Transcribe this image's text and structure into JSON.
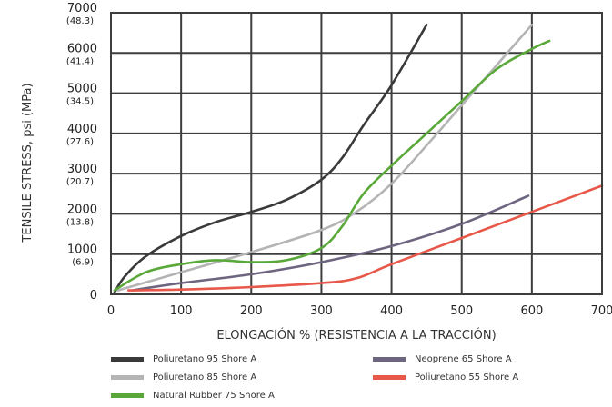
{
  "chart_data": {
    "type": "line",
    "title": "",
    "xlabel": "ELONGACIÓN % (RESISTENCIA A LA TRACCIÓN)",
    "ylabel": "TENSILE STRESS, psi (MPa)",
    "xlim": [
      0,
      700
    ],
    "ylim": [
      0,
      7000
    ],
    "grid": true,
    "legend_position": "bottom",
    "x_ticks": [
      "0",
      "100",
      "200",
      "300",
      "400",
      "500",
      "600",
      "700"
    ],
    "y_ticks": [
      {
        "value": 0,
        "label": "0",
        "sublabel": ""
      },
      {
        "value": 1000,
        "label": "1000",
        "sublabel": "(6.9)"
      },
      {
        "value": 2000,
        "label": "2000",
        "sublabel": "(13.8)"
      },
      {
        "value": 3000,
        "label": "3000",
        "sublabel": "(20.7)"
      },
      {
        "value": 4000,
        "label": "4000",
        "sublabel": "(27.6)"
      },
      {
        "value": 5000,
        "label": "5000",
        "sublabel": "(34.5)"
      },
      {
        "value": 6000,
        "label": "6000",
        "sublabel": "(41.4)"
      },
      {
        "value": 7000,
        "label": "7000",
        "sublabel": "(48.3)"
      }
    ],
    "series": [
      {
        "name": "Poliuretano 95 Shore A",
        "color": "#3a3a3a",
        "x": [
          5,
          20,
          50,
          100,
          150,
          200,
          250,
          300,
          330,
          360,
          400,
          450
        ],
        "y": [
          50,
          450,
          950,
          1450,
          1800,
          2050,
          2350,
          2850,
          3400,
          4200,
          5200,
          6700
        ]
      },
      {
        "name": "Poliuretano 85 Shore A",
        "color": "#b4b4b4",
        "x": [
          10,
          100,
          200,
          300,
          350,
          400,
          450,
          500,
          550,
          600
        ],
        "y": [
          100,
          550,
          1050,
          1600,
          2050,
          2750,
          3700,
          4700,
          5700,
          6700
        ]
      },
      {
        "name": "Natural Rubber 75 Shore A",
        "color": "#5aa83a",
        "x": [
          5,
          50,
          100,
          150,
          200,
          250,
          300,
          330,
          360,
          400,
          450,
          500,
          550,
          600,
          625
        ],
        "y": [
          100,
          550,
          750,
          850,
          800,
          850,
          1150,
          1700,
          2500,
          3200,
          4000,
          4800,
          5600,
          6100,
          6300
        ]
      },
      {
        "name": "Neoprene 65 Shore A",
        "color": "#6e6580",
        "x": [
          30,
          100,
          200,
          300,
          400,
          500,
          595
        ],
        "y": [
          100,
          280,
          500,
          800,
          1200,
          1750,
          2450
        ]
      },
      {
        "name": "Poliuretano 55 Shore A",
        "color": "#e8584a",
        "x": [
          25,
          100,
          200,
          300,
          350,
          400,
          500,
          600,
          700
        ],
        "y": [
          100,
          120,
          180,
          280,
          400,
          750,
          1400,
          2050,
          2700
        ]
      }
    ]
  }
}
